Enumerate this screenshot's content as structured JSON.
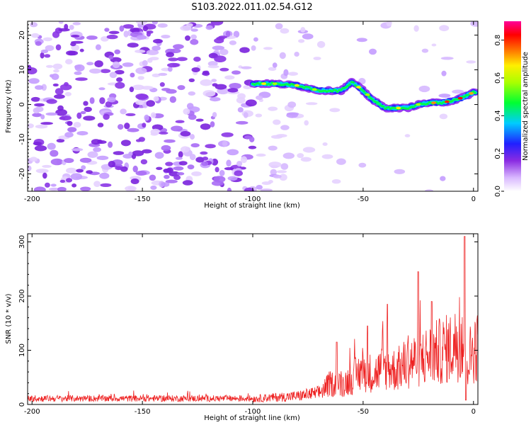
{
  "title": "S103.2022.011.02.54.G12",
  "chart_data": [
    {
      "type": "heatmap",
      "xlabel": "Height of straight line (km)",
      "ylabel": "Frequency (Hz)",
      "xlim": [
        -202,
        2
      ],
      "ylim": [
        -25,
        24
      ],
      "xticks": [
        -200,
        -150,
        -100,
        -50,
        0
      ],
      "yticks": [
        -20,
        -10,
        0,
        10,
        20
      ],
      "colorbar": {
        "label": "Normalized spectral amplitude",
        "range": [
          0,
          0.9
        ],
        "ticks": [
          0.0,
          0.2,
          0.4,
          0.6,
          0.8
        ],
        "colormap": "white-purple-blue-cyan-green-yellow-orange-red-magenta"
      },
      "ridge": {
        "description_points_x": [
          -100,
          -90,
          -80,
          -70,
          -60,
          -55,
          -50,
          -45,
          -40,
          -35,
          -30,
          -25,
          -20,
          -15,
          -10,
          -5,
          0
        ],
        "description_points_y": [
          6,
          6,
          5.5,
          4,
          4,
          6.5,
          4,
          1,
          -1,
          -1,
          -1,
          0,
          0.5,
          0.5,
          1,
          2,
          3.5
        ]
      },
      "noise_region_x": [
        -200,
        -100
      ]
    },
    {
      "type": "line",
      "xlabel": "Height of straight line (km)",
      "ylabel": "SNR (10 * v/v)",
      "xlim": [
        -202,
        2
      ],
      "ylim": [
        0,
        315
      ],
      "xticks": [
        -200,
        -150,
        -100,
        -50,
        0
      ],
      "yticks": [
        0,
        100,
        200,
        300
      ],
      "series": [
        {
          "color": "#ee2222",
          "envelope_x": [
            -200,
            -150,
            -100,
            -80,
            -70,
            -65,
            -60,
            -55,
            -50,
            -45,
            -40,
            -35,
            -30,
            -25,
            -20,
            -15,
            -10,
            -5,
            -3,
            0
          ],
          "envelope_y": [
            12,
            12,
            15,
            22,
            30,
            55,
            50,
            70,
            90,
            80,
            100,
            90,
            110,
            120,
            130,
            140,
            150,
            170,
            110,
            150
          ]
        }
      ],
      "peaks": [
        {
          "x": -62,
          "y": 115
        },
        {
          "x": -48,
          "y": 145
        },
        {
          "x": -39,
          "y": 185
        },
        {
          "x": -25,
          "y": 245
        },
        {
          "x": -19,
          "y": 190
        },
        {
          "x": -4,
          "y": 310
        }
      ]
    }
  ]
}
